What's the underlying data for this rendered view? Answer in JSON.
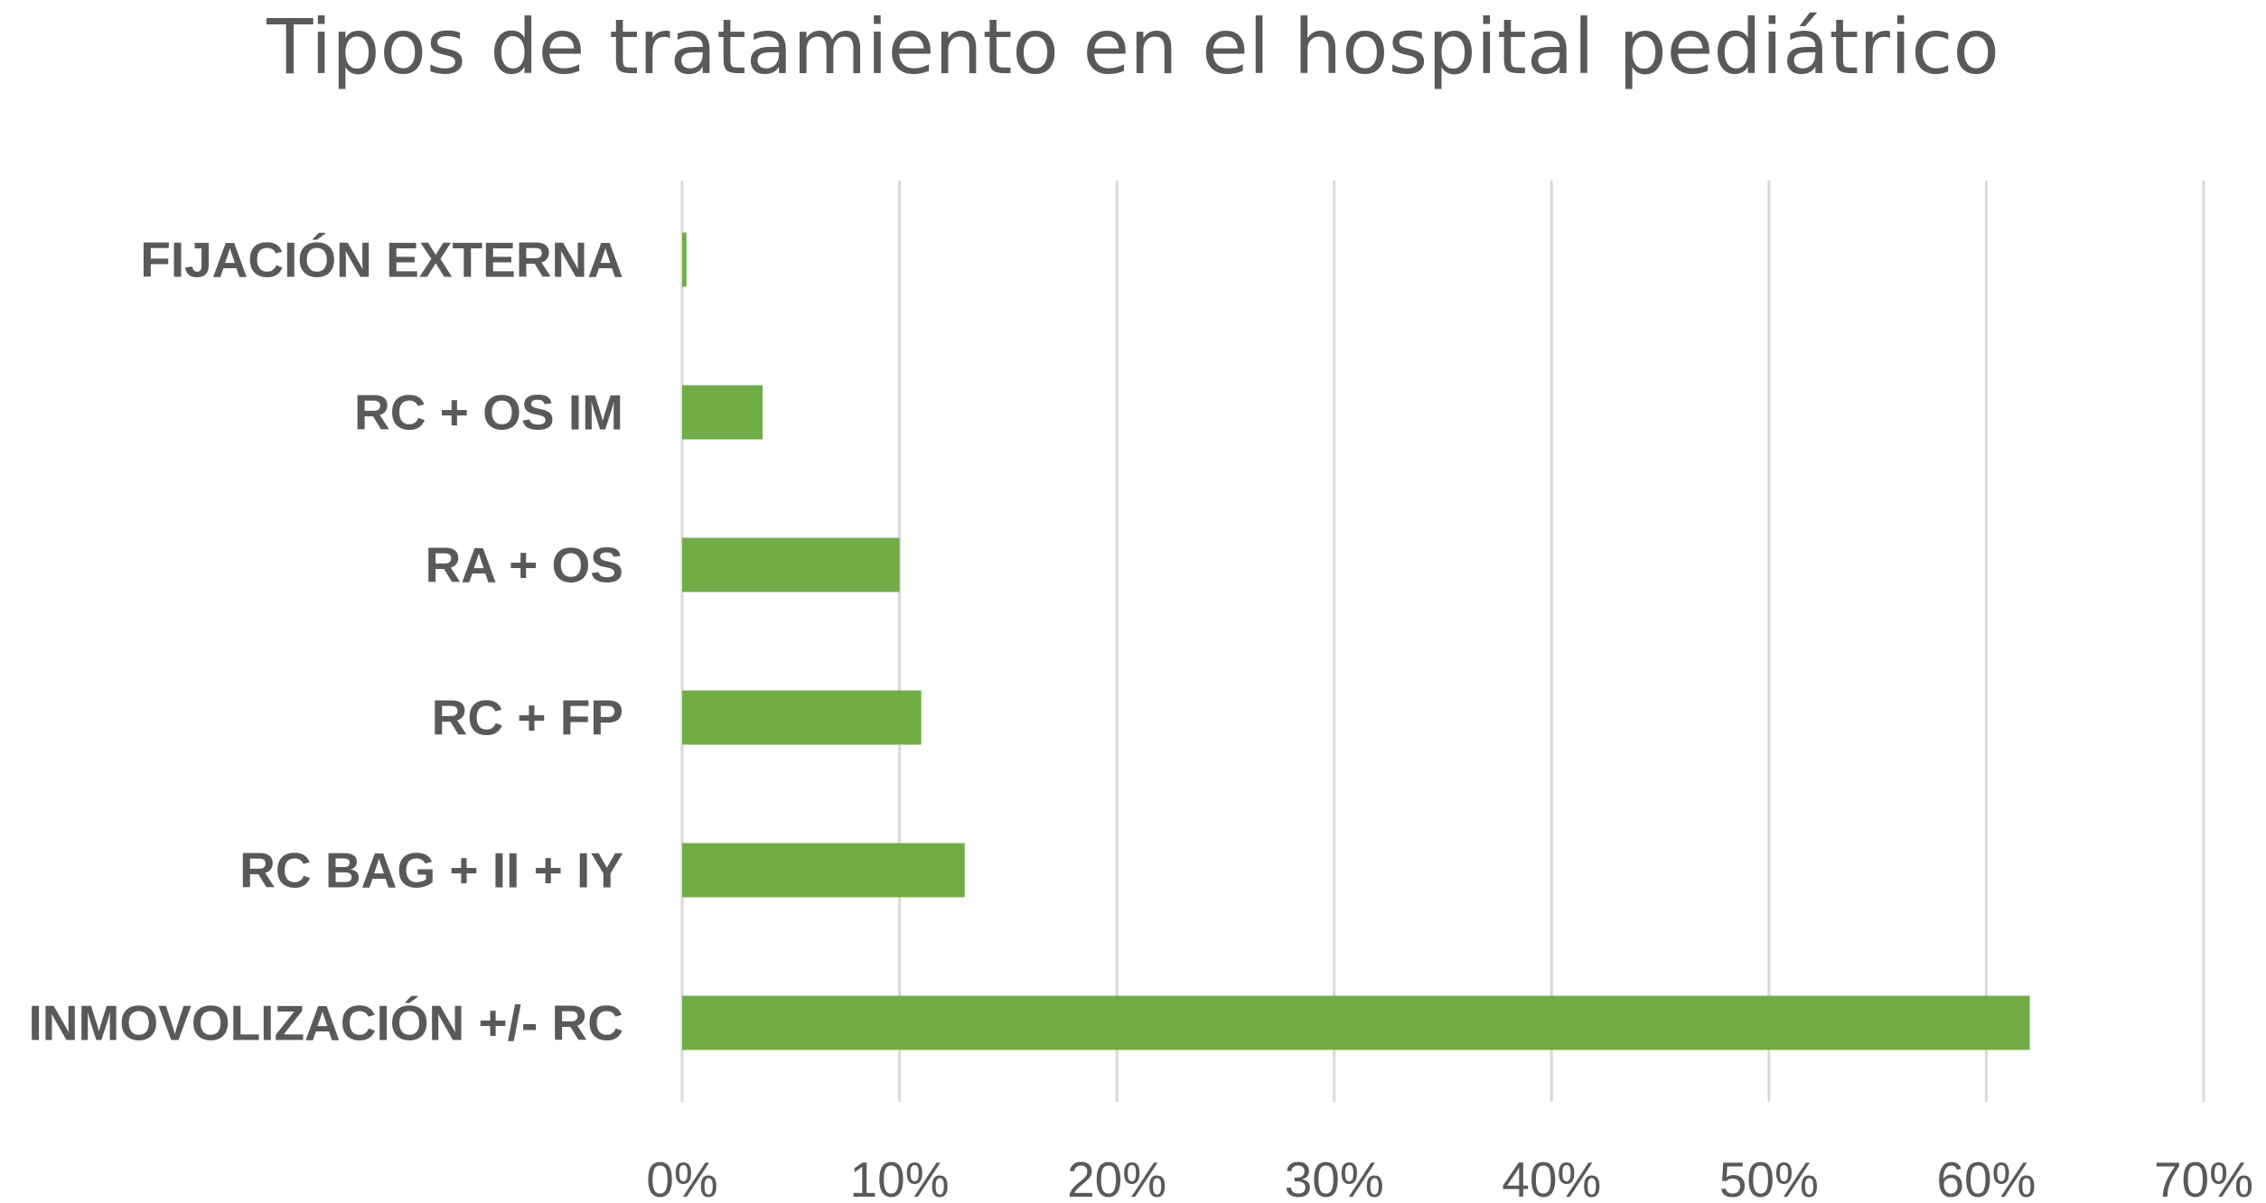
{
  "chart_data": {
    "type": "bar",
    "orientation": "horizontal",
    "title": "Tipos de tratamiento en el hospital pediátrico",
    "categories": [
      "FIJACIÓN EXTERNA",
      "RC + OS IM",
      "RA + OS",
      "RC + FP",
      "RC BAG + II + IY",
      "INMOVOLIZACIÓN +/- RC"
    ],
    "values": [
      0.2,
      3.7,
      10.0,
      11.0,
      13.0,
      62.0
    ],
    "xlim": [
      0,
      70
    ],
    "x_ticks": [
      0,
      10,
      20,
      30,
      40,
      50,
      60,
      70
    ],
    "x_tick_labels": [
      "0%",
      "10%",
      "20%",
      "30%",
      "40%",
      "50%",
      "60%",
      "70%"
    ],
    "xlabel": "",
    "ylabel": "",
    "grid": "vertical",
    "legend": "none",
    "bar_color": "#70AD47",
    "grid_color": "#D9D9D9",
    "text_color": "#595959"
  }
}
